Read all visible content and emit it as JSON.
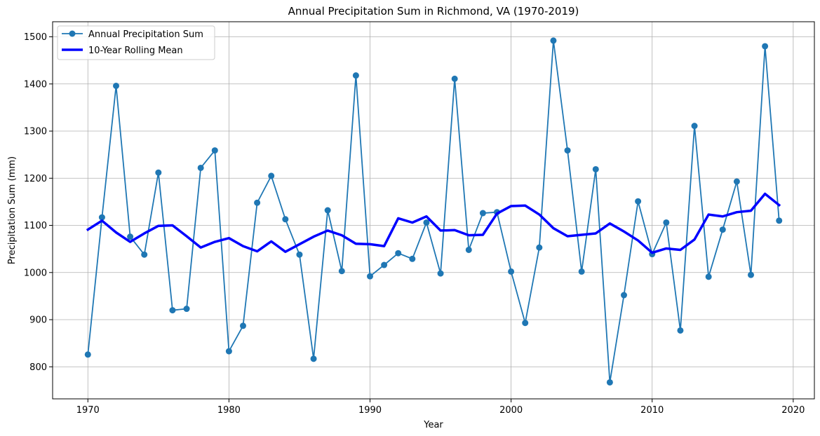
{
  "chart_data": {
    "type": "line",
    "title": "Annual Precipitation Sum in Richmond, VA (1970-2019)",
    "xlabel": "Year",
    "ylabel": "Precipitation Sum (mm)",
    "xlim": [
      1967.5,
      2021.5
    ],
    "ylim": [
      732,
      1532
    ],
    "xticks": [
      1970,
      1980,
      1990,
      2000,
      2010,
      2020
    ],
    "yticks": [
      800,
      900,
      1000,
      1100,
      1200,
      1300,
      1400,
      1500
    ],
    "grid": true,
    "legend_position": "top-left",
    "x": [
      1970,
      1971,
      1972,
      1973,
      1974,
      1975,
      1976,
      1977,
      1978,
      1979,
      1980,
      1981,
      1982,
      1983,
      1984,
      1985,
      1986,
      1987,
      1988,
      1989,
      1990,
      1991,
      1992,
      1993,
      1994,
      1995,
      1996,
      1997,
      1998,
      1999,
      2000,
      2001,
      2002,
      2003,
      2004,
      2005,
      2006,
      2007,
      2008,
      2009,
      2010,
      2011,
      2012,
      2013,
      2014,
      2015,
      2016,
      2017,
      2018,
      2019
    ],
    "series": [
      {
        "name": "Annual Precipitation Sum",
        "color": "#1f77b4",
        "style": "line-with-markers",
        "values": [
          826,
          1117,
          1396,
          1076,
          1038,
          1212,
          920,
          923,
          1222,
          1259,
          833,
          887,
          1148,
          1205,
          1113,
          1038,
          817,
          1132,
          1003,
          1418,
          992,
          1016,
          1041,
          1029,
          1106,
          998,
          1411,
          1048,
          1126,
          1128,
          1002,
          893,
          1053,
          1492,
          1259,
          1002,
          1219,
          767,
          952,
          1151,
          1039,
          1106,
          877,
          1311,
          991,
          1091,
          1193,
          995,
          1480,
          1110
        ]
      },
      {
        "name": "10-Year Rolling Mean",
        "color": "#0000ff",
        "style": "thick-line",
        "values": [
          1091,
          1110,
          1085,
          1065,
          1083,
          1099,
          1100,
          1077,
          1053,
          1065,
          1073,
          1056,
          1045,
          1066,
          1044,
          1060,
          1076,
          1089,
          1079,
          1061,
          1060,
          1056,
          1115,
          1106,
          1119,
          1089,
          1090,
          1079,
          1080,
          1125,
          1141,
          1142,
          1123,
          1094,
          1077,
          1080,
          1083,
          1104,
          1087,
          1068,
          1042,
          1051,
          1048,
          1070,
          1123,
          1119,
          1128,
          1131,
          1167,
          1143
        ]
      }
    ]
  }
}
